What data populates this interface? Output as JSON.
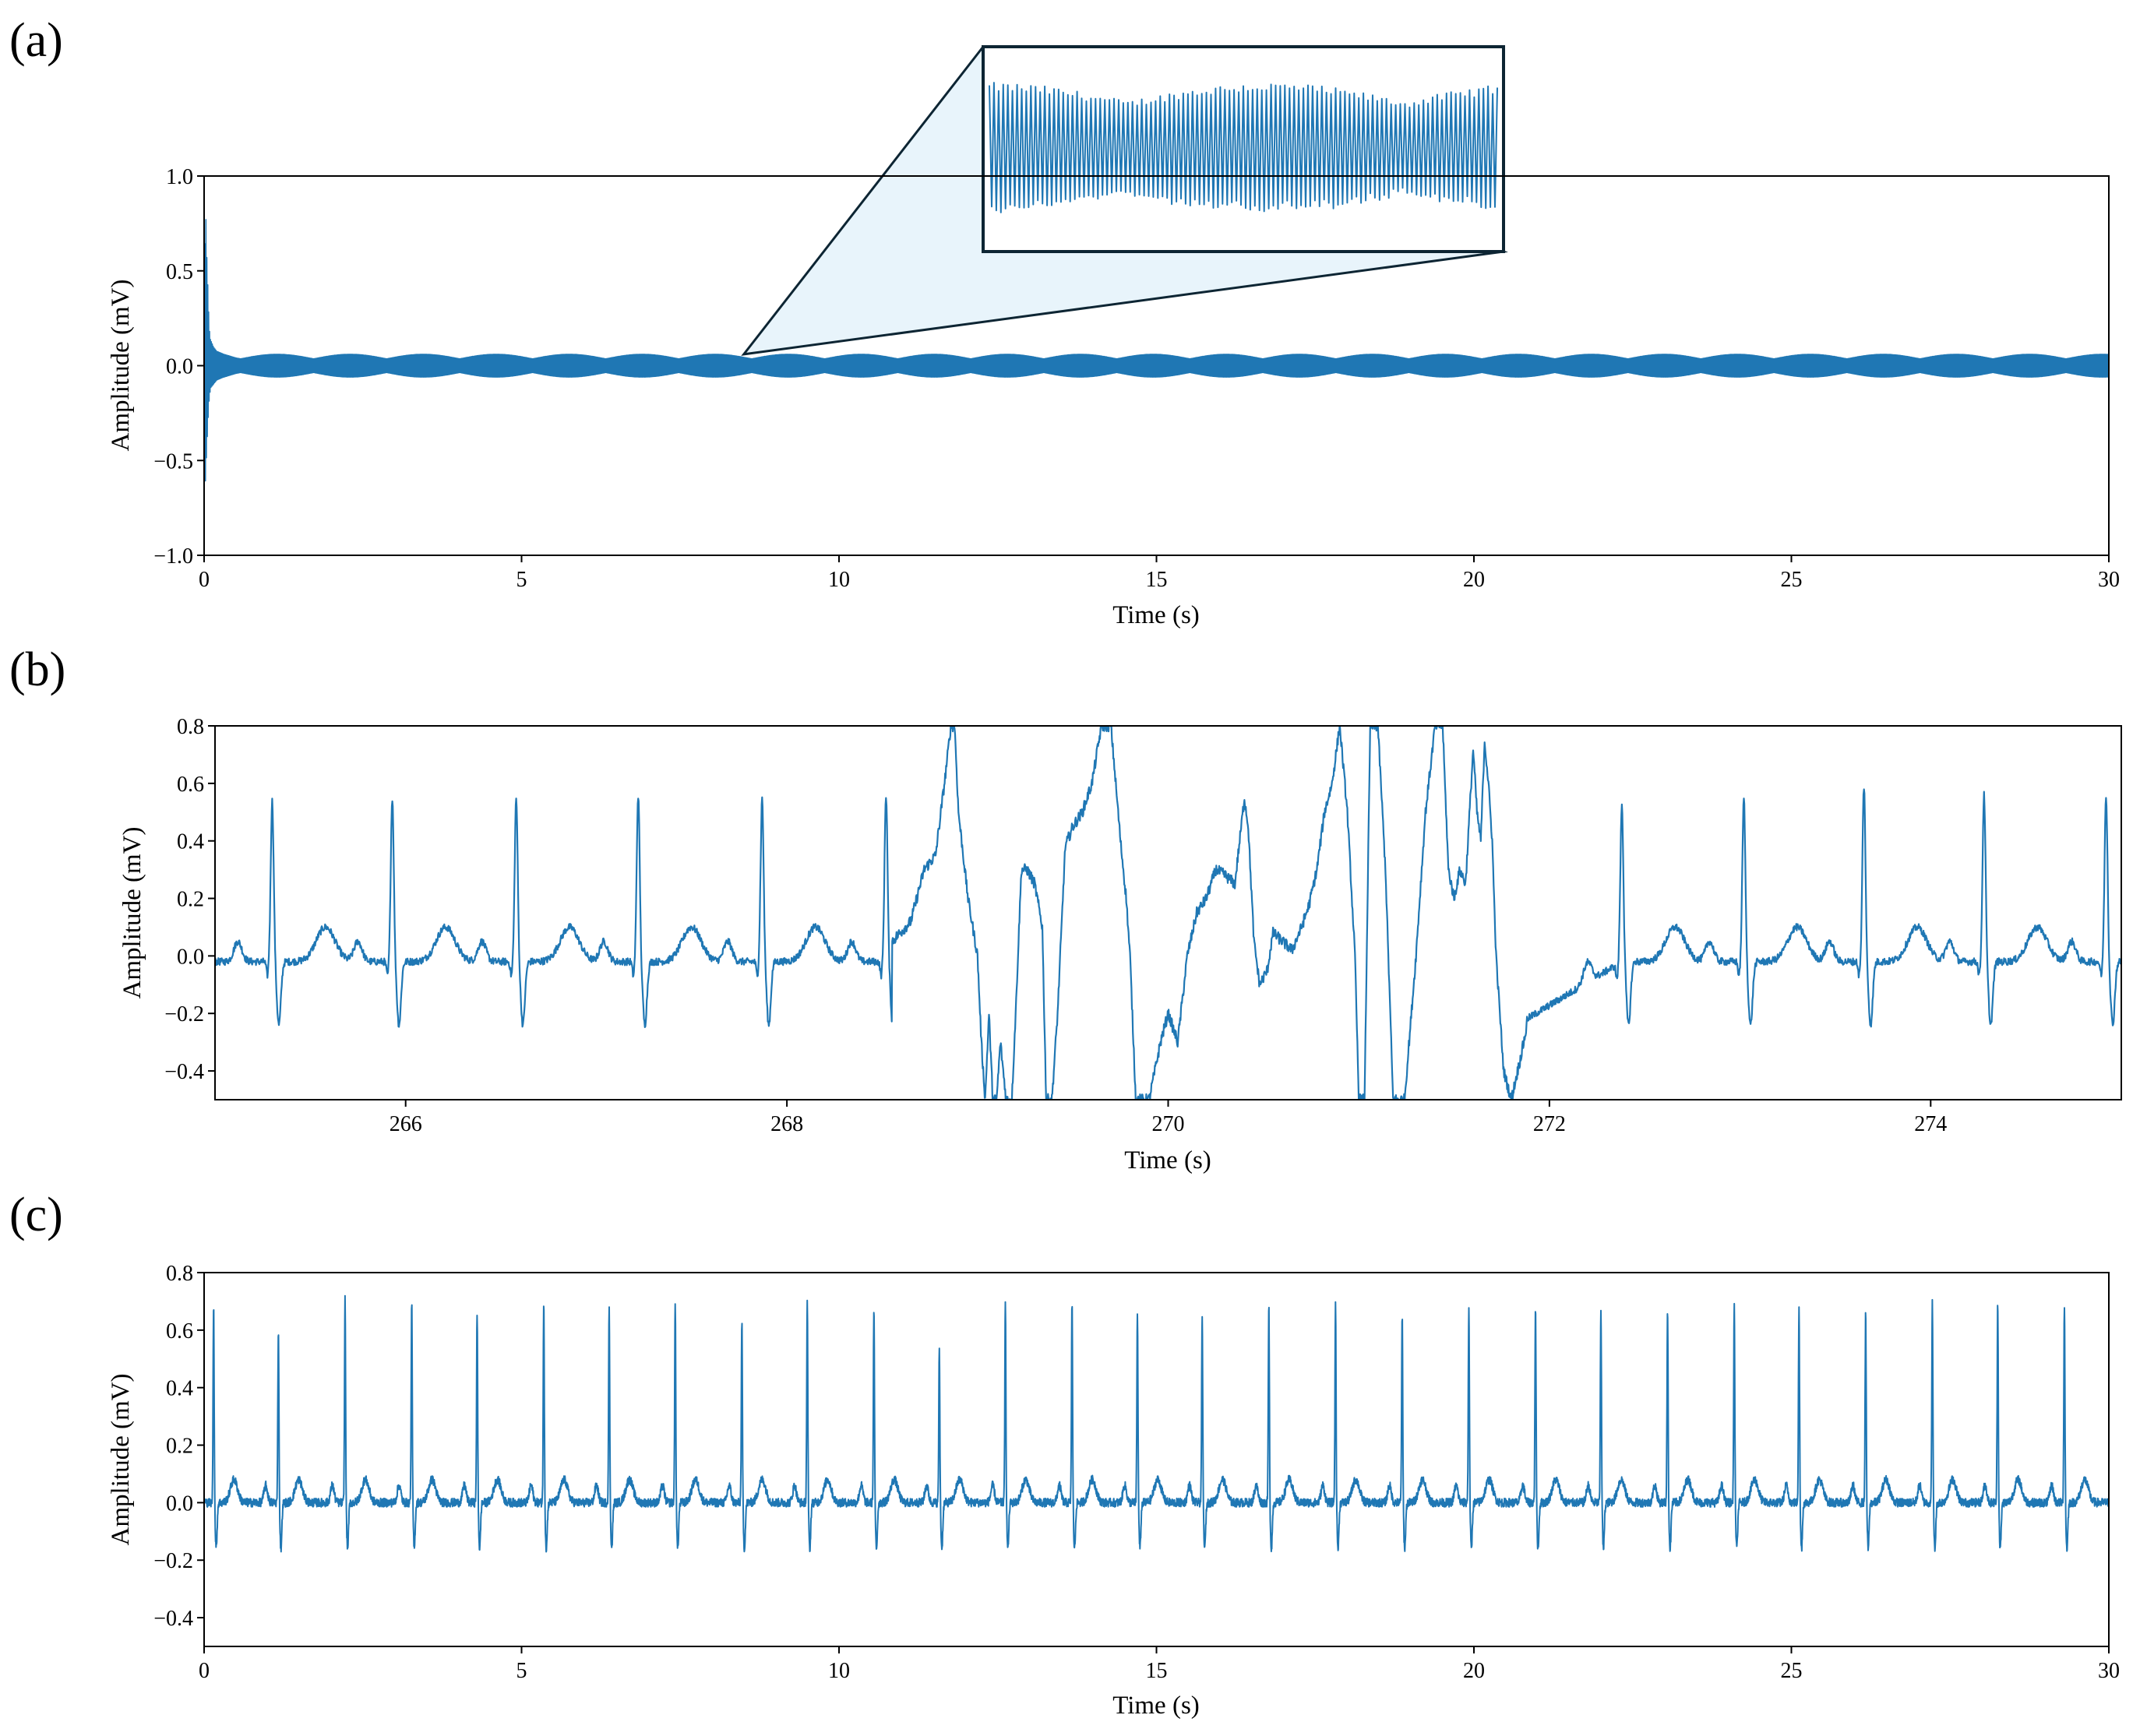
{
  "colors": {
    "trace": "#1f77b4",
    "zoom_fill": "#e8f4fb",
    "zoom_edge": "#0d2533",
    "axes": "#000000"
  },
  "chart_data": [
    {
      "type": "line",
      "panel_label": "(a)",
      "xlabel": "Time (s)",
      "ylabel": "Amplitude (mV)",
      "xlim": [
        0,
        30
      ],
      "ylim": [
        -1.0,
        1.0
      ],
      "xticks": [
        0,
        5,
        10,
        15,
        20,
        25,
        30
      ],
      "yticks": [
        -1.0,
        -0.5,
        0.0,
        0.5,
        1.0
      ],
      "ytick_labels": [
        "−1.0",
        "−0.5",
        "0.0",
        "0.5",
        "1.0"
      ],
      "grid": false,
      "description_of_signal": "high-frequency oscillation centered at 0 mV, envelope about ±0.06 mV, beating pattern; initial transient up to 0.9 and down to -0.62 mV near t = 0",
      "series": [
        {
          "x": [
            0,
            0.02,
            0.04,
            0.06,
            0.08,
            0.1,
            0.15,
            0.2,
            0.3,
            0.5,
            1,
            5,
            10,
            15,
            20,
            25,
            30
          ],
          "y_max": [
            0,
            0.9,
            0.6,
            0.4,
            0.2,
            0.14,
            0.1,
            0.08,
            0.07,
            0.06,
            0.06,
            0.06,
            0.06,
            0.06,
            0.06,
            0.06,
            0.06
          ],
          "y_min": [
            0,
            -0.62,
            -0.45,
            -0.3,
            -0.18,
            -0.12,
            -0.1,
            -0.08,
            -0.07,
            -0.06,
            -0.06,
            -0.06,
            -0.06,
            -0.06,
            -0.06,
            -0.06,
            -0.06
          ]
        }
      ],
      "inset": {
        "type": "zoom",
        "source_x": 8.5,
        "source_y": 0.06
      }
    },
    {
      "type": "line",
      "panel_label": "(b)",
      "xlabel": "Time (s)",
      "ylabel": "Amplitude (mV)",
      "xlim": [
        265,
        275
      ],
      "ylim": [
        -0.5,
        0.8
      ],
      "xticks": [
        266,
        268,
        270,
        272,
        274
      ],
      "yticks": [
        -0.4,
        -0.2,
        0.0,
        0.2,
        0.4,
        0.6,
        0.8
      ],
      "ytick_labels": [
        "−0.4",
        "−0.2",
        "0.0",
        "0.2",
        "0.4",
        "0.6",
        "0.8"
      ],
      "grid": false,
      "r_peaks": [
        {
          "t": 265.3,
          "amp": 0.56
        },
        {
          "t": 265.93,
          "amp": 0.57
        },
        {
          "t": 266.58,
          "amp": 0.57
        },
        {
          "t": 267.22,
          "amp": 0.58
        },
        {
          "t": 267.87,
          "amp": 0.57
        },
        {
          "t": 268.52,
          "amp": 0.58
        },
        {
          "t": 272.38,
          "amp": 0.55
        },
        {
          "t": 273.02,
          "amp": 0.57
        },
        {
          "t": 273.65,
          "amp": 0.61
        },
        {
          "t": 274.28,
          "amp": 0.58
        },
        {
          "t": 274.92,
          "amp": 0.58
        }
      ],
      "artifact_points": {
        "t": [
          268.55,
          268.65,
          268.72,
          268.78,
          268.83,
          268.86,
          268.88,
          268.9,
          268.95,
          269.0,
          269.02,
          269.04,
          269.06,
          269.08,
          269.1,
          269.12,
          269.15,
          269.18,
          269.2,
          269.23,
          269.26,
          269.3,
          269.34,
          269.36,
          269.39,
          269.42,
          269.46,
          269.5,
          269.55,
          269.6,
          269.65,
          269.7,
          269.75,
          269.78,
          269.8,
          269.83,
          269.86,
          269.9,
          269.96,
          270.0,
          270.05,
          270.1,
          270.15,
          270.2,
          270.25,
          270.3,
          270.35,
          270.4,
          270.42,
          270.45,
          270.48,
          270.52,
          270.55,
          270.6,
          270.65,
          270.7,
          270.74,
          270.78,
          270.82,
          270.86,
          270.9,
          270.94,
          270.98,
          271.0,
          271.03,
          271.06,
          271.1,
          271.14,
          271.18,
          271.24,
          271.3,
          271.35,
          271.4,
          271.44,
          271.47,
          271.5,
          271.53,
          271.56,
          271.6,
          271.62,
          271.64,
          271.66,
          271.68,
          271.7,
          271.72,
          271.74,
          271.76,
          271.8,
          271.85,
          271.88
        ],
        "y": [
          0.05,
          0.12,
          0.3,
          0.35,
          0.62,
          0.8,
          0.8,
          0.5,
          0.2,
          0.0,
          -0.3,
          -0.5,
          -0.2,
          -0.5,
          -0.5,
          -0.3,
          -0.5,
          -0.5,
          -0.2,
          0.3,
          0.3,
          0.25,
          0.1,
          -0.5,
          -0.5,
          -0.2,
          0.38,
          0.45,
          0.5,
          0.6,
          0.8,
          0.8,
          0.4,
          0.2,
          0.0,
          -0.5,
          -0.5,
          -0.5,
          -0.3,
          -0.2,
          -0.3,
          0.0,
          0.15,
          0.2,
          0.3,
          0.28,
          0.25,
          0.55,
          0.45,
          0.05,
          -0.1,
          -0.05,
          0.08,
          0.05,
          0.02,
          0.1,
          0.18,
          0.3,
          0.5,
          0.6,
          0.8,
          0.5,
          0.0,
          -0.5,
          -0.5,
          0.8,
          0.8,
          0.3,
          -0.5,
          -0.5,
          0.0,
          0.5,
          0.8,
          0.8,
          0.3,
          0.2,
          0.3,
          0.25,
          0.72,
          0.5,
          0.4,
          0.75,
          0.6,
          0.4,
          0.0,
          -0.2,
          -0.4,
          -0.5,
          -0.35,
          -0.25
        ]
      }
    },
    {
      "type": "line",
      "panel_label": "(c)",
      "xlabel": "Time (s)",
      "ylabel": "Amplitude (mV)",
      "xlim": [
        0,
        30
      ],
      "ylim": [
        -0.5,
        0.8
      ],
      "xticks": [
        0,
        5,
        10,
        15,
        20,
        25,
        30
      ],
      "yticks": [
        -0.4,
        -0.2,
        0.0,
        0.2,
        0.4,
        0.6,
        0.8
      ],
      "ytick_labels": [
        "−0.4",
        "−0.2",
        "0.0",
        "0.2",
        "0.4",
        "0.6",
        "0.8"
      ],
      "grid": false,
      "r_peaks": [
        {
          "t": 0.15,
          "amp": 0.69
        },
        {
          "t": 1.17,
          "amp": 0.61
        },
        {
          "t": 2.22,
          "amp": 0.71
        },
        {
          "t": 3.27,
          "amp": 0.7
        },
        {
          "t": 4.3,
          "amp": 0.66
        },
        {
          "t": 5.35,
          "amp": 0.7
        },
        {
          "t": 6.38,
          "amp": 0.68
        },
        {
          "t": 7.42,
          "amp": 0.69
        },
        {
          "t": 8.47,
          "amp": 0.63
        },
        {
          "t": 9.5,
          "amp": 0.7
        },
        {
          "t": 10.55,
          "amp": 0.68
        },
        {
          "t": 11.58,
          "amp": 0.53
        },
        {
          "t": 12.62,
          "amp": 0.69
        },
        {
          "t": 13.67,
          "amp": 0.7
        },
        {
          "t": 14.7,
          "amp": 0.66
        },
        {
          "t": 15.72,
          "amp": 0.65
        },
        {
          "t": 16.77,
          "amp": 0.69
        },
        {
          "t": 17.82,
          "amp": 0.69
        },
        {
          "t": 18.87,
          "amp": 0.66
        },
        {
          "t": 19.92,
          "amp": 0.69
        },
        {
          "t": 20.97,
          "amp": 0.69
        },
        {
          "t": 22.0,
          "amp": 0.68
        },
        {
          "t": 23.05,
          "amp": 0.68
        },
        {
          "t": 24.1,
          "amp": 0.69
        },
        {
          "t": 25.12,
          "amp": 0.69
        },
        {
          "t": 26.17,
          "amp": 0.67
        },
        {
          "t": 27.22,
          "amp": 0.7
        },
        {
          "t": 28.25,
          "amp": 0.7
        },
        {
          "t": 29.3,
          "amp": 0.69
        }
      ]
    }
  ]
}
